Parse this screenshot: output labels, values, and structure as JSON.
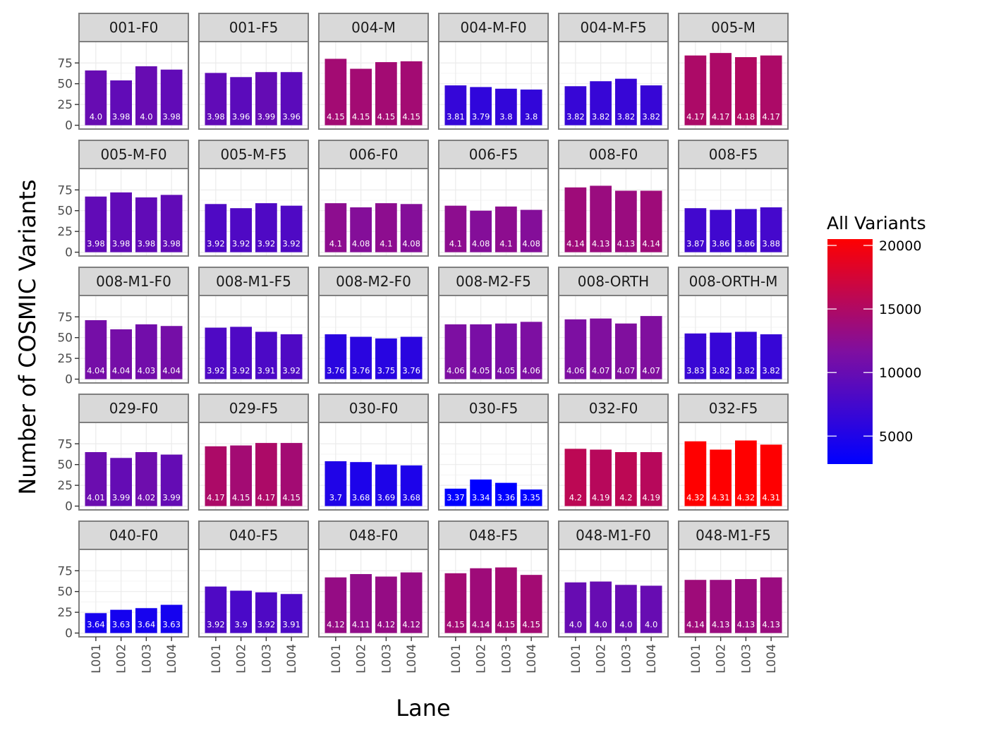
{
  "chart_data": {
    "type": "bar",
    "layout": "faceted",
    "xlabel": "Lane",
    "ylabel": "Number of COSMIC Variants",
    "categories": [
      "L001",
      "L002",
      "L003",
      "L004"
    ],
    "y_ticks": [
      0,
      25,
      50,
      75
    ],
    "ylim": [
      0,
      90
    ],
    "legend": {
      "title": "All Variants",
      "position": "right",
      "ticks": [
        5000,
        10000,
        15000,
        20000
      ],
      "range": [
        2800,
        20500
      ],
      "low_color": "#0000ff",
      "mid_color": "#7f0fa0",
      "high_color": "#ff0000"
    },
    "facets": [
      {
        "name": "001-F0",
        "values": [
          66,
          54,
          71,
          67
        ],
        "labels": [
          "4.0",
          "3.98",
          "4.0",
          "3.98"
        ],
        "fill": [
          10000,
          9550,
          10000,
          9550
        ]
      },
      {
        "name": "001-F5",
        "values": [
          63,
          58,
          64,
          64
        ],
        "labels": [
          "3.98",
          "3.96",
          "3.99",
          "3.96"
        ],
        "fill": [
          9550,
          9120,
          9770,
          9120
        ]
      },
      {
        "name": "004-M",
        "values": [
          80,
          68,
          76,
          77
        ],
        "labels": [
          "4.15",
          "4.15",
          "4.15",
          "4.15"
        ],
        "fill": [
          14130,
          14130,
          14130,
          14130
        ]
      },
      {
        "name": "004-M-F0",
        "values": [
          48,
          46,
          44,
          43
        ],
        "labels": [
          "3.81",
          "3.79",
          "3.8",
          "3.8"
        ],
        "fill": [
          6460,
          6170,
          6310,
          6310
        ]
      },
      {
        "name": "004-M-F5",
        "values": [
          47,
          53,
          56,
          48
        ],
        "labels": [
          "3.82",
          "3.82",
          "3.82",
          "3.82"
        ],
        "fill": [
          6610,
          6610,
          6610,
          6610
        ]
      },
      {
        "name": "005-M",
        "values": [
          84,
          87,
          82,
          84
        ],
        "labels": [
          "4.17",
          "4.17",
          "4.18",
          "4.17"
        ],
        "fill": [
          14790,
          14790,
          15140,
          14790
        ]
      },
      {
        "name": "005-M-F0",
        "values": [
          67,
          72,
          66,
          69
        ],
        "labels": [
          "3.98",
          "3.98",
          "3.98",
          "3.98"
        ],
        "fill": [
          9550,
          9550,
          9550,
          9550
        ]
      },
      {
        "name": "005-M-F5",
        "values": [
          58,
          53,
          59,
          56
        ],
        "labels": [
          "3.92",
          "3.92",
          "3.92",
          "3.92"
        ],
        "fill": [
          8320,
          8320,
          8320,
          8320
        ]
      },
      {
        "name": "006-F0",
        "values": [
          59,
          54,
          59,
          58
        ],
        "labels": [
          "4.1",
          "4.08",
          "4.1",
          "4.08"
        ],
        "fill": [
          12590,
          12020,
          12590,
          12020
        ]
      },
      {
        "name": "006-F5",
        "values": [
          56,
          50,
          55,
          51
        ],
        "labels": [
          "4.1",
          "4.08",
          "4.1",
          "4.08"
        ],
        "fill": [
          12590,
          12020,
          12590,
          12020
        ]
      },
      {
        "name": "008-F0",
        "values": [
          78,
          80,
          74,
          74
        ],
        "labels": [
          "4.14",
          "4.13",
          "4.13",
          "4.14"
        ],
        "fill": [
          13800,
          13490,
          13490,
          13800
        ]
      },
      {
        "name": "008-F5",
        "values": [
          53,
          51,
          52,
          54
        ],
        "labels": [
          "3.87",
          "3.86",
          "3.86",
          "3.88"
        ],
        "fill": [
          7410,
          7240,
          7240,
          7590
        ]
      },
      {
        "name": "008-M1-F0",
        "values": [
          71,
          60,
          66,
          64
        ],
        "labels": [
          "4.04",
          "4.04",
          "4.03",
          "4.04"
        ],
        "fill": [
          10960,
          10960,
          10720,
          10960
        ]
      },
      {
        "name": "008-M1-F5",
        "values": [
          62,
          63,
          57,
          54
        ],
        "labels": [
          "3.92",
          "3.92",
          "3.91",
          "3.92"
        ],
        "fill": [
          8320,
          8320,
          8130,
          8320
        ]
      },
      {
        "name": "008-M2-F0",
        "values": [
          54,
          51,
          49,
          51
        ],
        "labels": [
          "3.76",
          "3.76",
          "3.75",
          "3.76"
        ],
        "fill": [
          5750,
          5750,
          5620,
          5750
        ]
      },
      {
        "name": "008-M2-F5",
        "values": [
          66,
          66,
          67,
          69
        ],
        "labels": [
          "4.06",
          "4.05",
          "4.05",
          "4.06"
        ],
        "fill": [
          11480,
          11220,
          11220,
          11480
        ]
      },
      {
        "name": "008-ORTH",
        "values": [
          72,
          73,
          67,
          76
        ],
        "labels": [
          "4.06",
          "4.07",
          "4.07",
          "4.07"
        ],
        "fill": [
          11480,
          11750,
          11750,
          11750
        ]
      },
      {
        "name": "008-ORTH-M",
        "values": [
          55,
          56,
          57,
          54
        ],
        "labels": [
          "3.83",
          "3.82",
          "3.82",
          "3.82"
        ],
        "fill": [
          6760,
          6610,
          6610,
          6610
        ]
      },
      {
        "name": "029-F0",
        "values": [
          65,
          58,
          65,
          62
        ],
        "labels": [
          "4.01",
          "3.99",
          "4.02",
          "3.99"
        ],
        "fill": [
          10230,
          9770,
          10470,
          9770
        ]
      },
      {
        "name": "029-F5",
        "values": [
          72,
          73,
          76,
          76
        ],
        "labels": [
          "4.17",
          "4.15",
          "4.17",
          "4.15"
        ],
        "fill": [
          14790,
          14130,
          14790,
          14130
        ]
      },
      {
        "name": "030-F0",
        "values": [
          54,
          53,
          50,
          49
        ],
        "labels": [
          "3.7",
          "3.68",
          "3.69",
          "3.68"
        ],
        "fill": [
          5010,
          4790,
          4900,
          4790
        ]
      },
      {
        "name": "030-F5",
        "values": [
          21,
          32,
          28,
          20
        ],
        "labels": [
          "3.37",
          "3.34",
          "3.36",
          "3.35"
        ],
        "fill": [
          2340,
          2190,
          2290,
          2240
        ]
      },
      {
        "name": "032-F0",
        "values": [
          69,
          68,
          65,
          65
        ],
        "labels": [
          "4.2",
          "4.19",
          "4.2",
          "4.19"
        ],
        "fill": [
          15850,
          15490,
          15850,
          15490
        ]
      },
      {
        "name": "032-F5",
        "values": [
          78,
          68,
          79,
          74
        ],
        "labels": [
          "4.32",
          "4.31",
          "4.32",
          "4.31"
        ],
        "fill": [
          20890,
          20420,
          20890,
          20420
        ]
      },
      {
        "name": "040-F0",
        "values": [
          24,
          28,
          30,
          34
        ],
        "labels": [
          "3.64",
          "3.63",
          "3.64",
          "3.63"
        ],
        "fill": [
          4370,
          4270,
          4370,
          4270
        ]
      },
      {
        "name": "040-F5",
        "values": [
          56,
          51,
          49,
          47
        ],
        "labels": [
          "3.92",
          "3.9",
          "3.92",
          "3.91"
        ],
        "fill": [
          8320,
          7940,
          8320,
          8130
        ]
      },
      {
        "name": "048-F0",
        "values": [
          67,
          71,
          68,
          73
        ],
        "labels": [
          "4.12",
          "4.11",
          "4.12",
          "4.12"
        ],
        "fill": [
          13180,
          12880,
          13180,
          13180
        ]
      },
      {
        "name": "048-F5",
        "values": [
          72,
          78,
          79,
          70
        ],
        "labels": [
          "4.15",
          "4.14",
          "4.15",
          "4.15"
        ],
        "fill": [
          14130,
          13800,
          14130,
          14130
        ]
      },
      {
        "name": "048-M1-F0",
        "values": [
          61,
          62,
          58,
          57
        ],
        "labels": [
          "4.0",
          "4.0",
          "4.0",
          "4.0"
        ],
        "fill": [
          10000,
          10000,
          10000,
          10000
        ]
      },
      {
        "name": "048-M1-F5",
        "values": [
          64,
          64,
          65,
          67
        ],
        "labels": [
          "4.14",
          "4.13",
          "4.13",
          "4.13"
        ],
        "fill": [
          13800,
          13490,
          13490,
          13490
        ]
      }
    ]
  }
}
